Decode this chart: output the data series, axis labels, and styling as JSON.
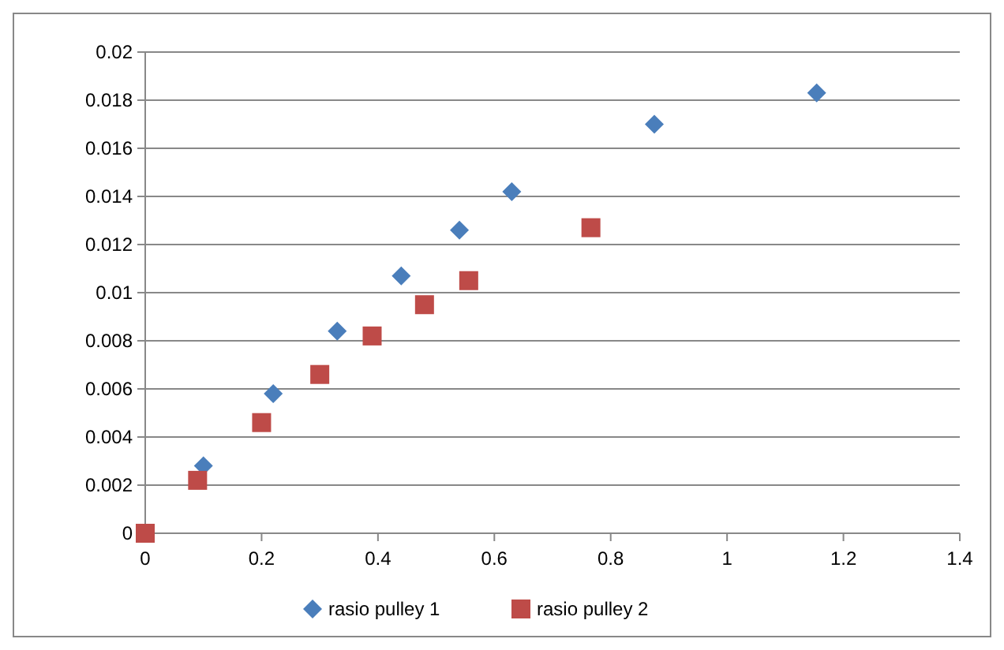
{
  "chart_data": {
    "type": "scatter",
    "xlim": [
      0,
      1.4
    ],
    "xticks": [
      0,
      0.2,
      0.4,
      0.6,
      0.8,
      1,
      1.2,
      1.4
    ],
    "ylim": [
      0,
      0.02
    ],
    "yticks": [
      0,
      0.002,
      0.004,
      0.006,
      0.008,
      0.01,
      0.012,
      0.014,
      0.016,
      0.018,
      0.02
    ],
    "grid": "y",
    "legend": "bottom",
    "series": [
      {
        "name": "rasio pulley 1",
        "color": "#4a7ebb",
        "marker": "diamond",
        "x": [
          0.1,
          0.22,
          0.33,
          0.44,
          0.54,
          0.63,
          0.875,
          1.154
        ],
        "values": [
          0.0028,
          0.0058,
          0.0084,
          0.0107,
          0.0126,
          0.0142,
          0.017,
          0.0183
        ]
      },
      {
        "name": "rasio pulley 2",
        "color": "#be4b48",
        "marker": "square",
        "x": [
          0,
          0.09,
          0.2,
          0.3,
          0.39,
          0.48,
          0.556,
          0.766
        ],
        "values": [
          0,
          0.0022,
          0.0046,
          0.0066,
          0.0082,
          0.0095,
          0.0105,
          0.0127
        ]
      }
    ]
  }
}
